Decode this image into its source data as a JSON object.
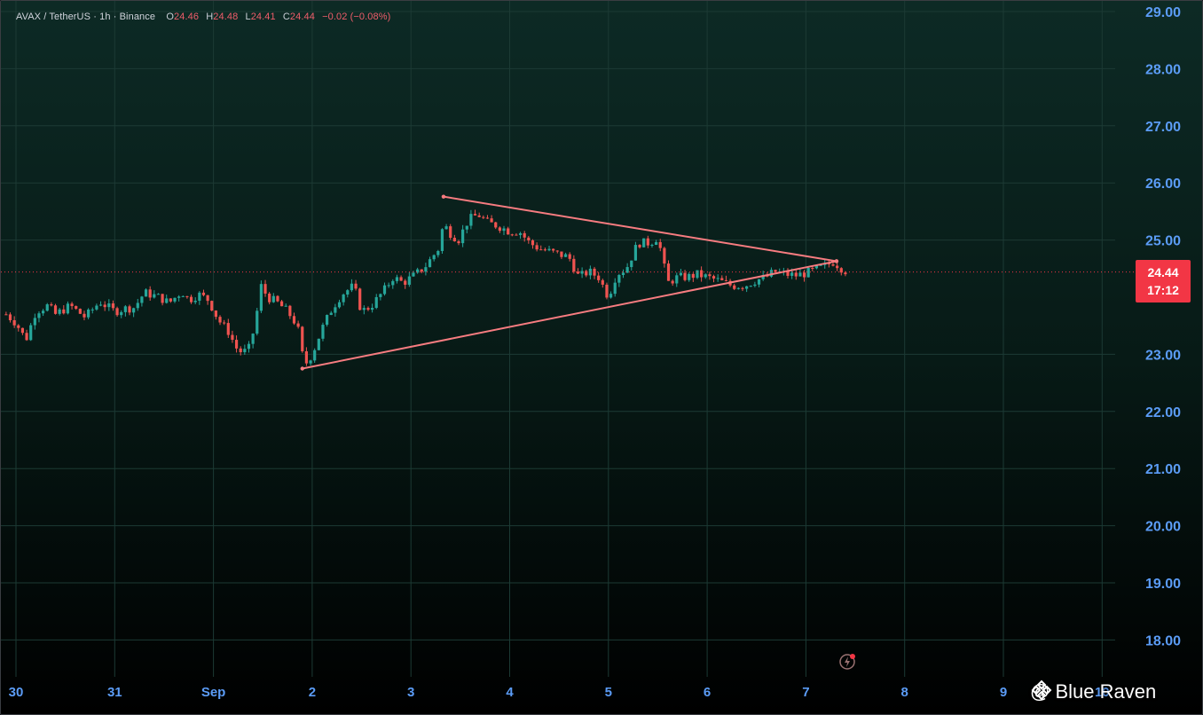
{
  "legend": {
    "symbol": "AVAX / TetherUS · 1h · Binance",
    "open_label": "O",
    "open": "24.46",
    "high_label": "H",
    "high": "24.48",
    "low_label": "L",
    "low": "24.41",
    "close_label": "C",
    "close": "24.44",
    "change": "−0.02 (−0.08%)"
  },
  "price_tag": {
    "price": "24.44",
    "countdown": "17:12"
  },
  "watermark": {
    "text": "@ Blue Raven",
    "icon": "binance-logo-icon"
  },
  "replay_icon": "lightning-icon",
  "colors": {
    "up": "#26a69a",
    "down": "#ef5350",
    "pattern": "#f77c80",
    "last_price": "#f23645",
    "axis_text": "#5b9cf6"
  },
  "chart_data": {
    "type": "candlestick",
    "title": "AVAX / TetherUS · 1h · Binance",
    "ylim": [
      17.5,
      29.2
    ],
    "y_ticks": [
      "29.00",
      "28.00",
      "27.00",
      "26.00",
      "25.00",
      "23.00",
      "22.00",
      "21.00",
      "20.00",
      "19.00",
      "18.00"
    ],
    "x_ticks": [
      {
        "label": "30",
        "day": 0
      },
      {
        "label": "31",
        "day": 1
      },
      {
        "label": "Sep",
        "day": 2
      },
      {
        "label": "2",
        "day": 3
      },
      {
        "label": "3",
        "day": 4
      },
      {
        "label": "4",
        "day": 5
      },
      {
        "label": "5",
        "day": 6
      },
      {
        "label": "6",
        "day": 7
      },
      {
        "label": "7",
        "day": 8
      },
      {
        "label": "8",
        "day": 9
      },
      {
        "label": "9",
        "day": 10
      },
      {
        "label": "10",
        "day": 11
      }
    ],
    "grid": true,
    "last_price": 24.44,
    "trendlines": [
      {
        "name": "upper",
        "from": {
          "day": 4.33,
          "price": 25.76
        },
        "to": {
          "day": 8.31,
          "price": 24.63
        }
      },
      {
        "name": "lower",
        "from": {
          "day": 2.9,
          "price": 22.75
        },
        "to": {
          "day": 8.31,
          "price": 24.63
        }
      }
    ],
    "close_path": [
      [
        -0.1,
        23.7
      ],
      [
        0.0,
        23.55
      ],
      [
        0.1,
        23.25
      ],
      [
        0.2,
        23.75
      ],
      [
        0.32,
        23.85
      ],
      [
        0.4,
        23.7
      ],
      [
        0.55,
        23.85
      ],
      [
        0.7,
        23.65
      ],
      [
        0.85,
        23.92
      ],
      [
        1.0,
        23.75
      ],
      [
        1.1,
        23.8
      ],
      [
        1.2,
        23.82
      ],
      [
        1.3,
        24.08
      ],
      [
        1.45,
        24.0
      ],
      [
        1.55,
        23.9
      ],
      [
        1.68,
        24.1
      ],
      [
        1.75,
        23.95
      ],
      [
        1.85,
        24.05
      ],
      [
        1.95,
        23.95
      ],
      [
        2.05,
        23.6
      ],
      [
        2.15,
        23.4
      ],
      [
        2.25,
        23.05
      ],
      [
        2.35,
        23.05
      ],
      [
        2.42,
        23.5
      ],
      [
        2.48,
        24.2
      ],
      [
        2.55,
        24.0
      ],
      [
        2.65,
        23.9
      ],
      [
        2.75,
        23.75
      ],
      [
        2.85,
        23.5
      ],
      [
        2.92,
        22.8
      ],
      [
        3.0,
        23.0
      ],
      [
        3.1,
        23.45
      ],
      [
        3.2,
        23.8
      ],
      [
        3.3,
        24.05
      ],
      [
        3.42,
        24.2
      ],
      [
        3.5,
        23.75
      ],
      [
        3.6,
        23.85
      ],
      [
        3.72,
        24.1
      ],
      [
        3.82,
        24.35
      ],
      [
        3.92,
        24.25
      ],
      [
        4.05,
        24.4
      ],
      [
        4.15,
        24.55
      ],
      [
        4.28,
        24.85
      ],
      [
        4.33,
        25.3
      ],
      [
        4.38,
        25.15
      ],
      [
        4.48,
        25.0
      ],
      [
        4.58,
        25.35
      ],
      [
        4.68,
        25.45
      ],
      [
        4.78,
        25.3
      ],
      [
        4.88,
        25.25
      ],
      [
        5.0,
        25.15
      ],
      [
        5.1,
        25.15
      ],
      [
        5.2,
        24.95
      ],
      [
        5.3,
        24.85
      ],
      [
        5.4,
        24.8
      ],
      [
        5.5,
        24.75
      ],
      [
        5.6,
        24.7
      ],
      [
        5.7,
        24.35
      ],
      [
        5.8,
        24.45
      ],
      [
        5.9,
        24.35
      ],
      [
        6.0,
        24.0
      ],
      [
        6.08,
        24.4
      ],
      [
        6.18,
        24.5
      ],
      [
        6.3,
        24.95
      ],
      [
        6.42,
        24.95
      ],
      [
        6.5,
        25.05
      ],
      [
        6.6,
        24.25
      ],
      [
        6.7,
        24.35
      ],
      [
        6.8,
        24.35
      ],
      [
        6.9,
        24.4
      ],
      [
        7.0,
        24.35
      ],
      [
        7.1,
        24.3
      ],
      [
        7.25,
        24.2
      ],
      [
        7.38,
        24.2
      ],
      [
        7.5,
        24.3
      ],
      [
        7.6,
        24.35
      ],
      [
        7.68,
        24.45
      ],
      [
        7.8,
        24.4
      ],
      [
        7.9,
        24.38
      ],
      [
        8.0,
        24.42
      ],
      [
        8.1,
        24.48
      ],
      [
        8.2,
        24.55
      ],
      [
        8.28,
        24.62
      ],
      [
        8.35,
        24.52
      ],
      [
        8.42,
        24.44
      ]
    ]
  }
}
